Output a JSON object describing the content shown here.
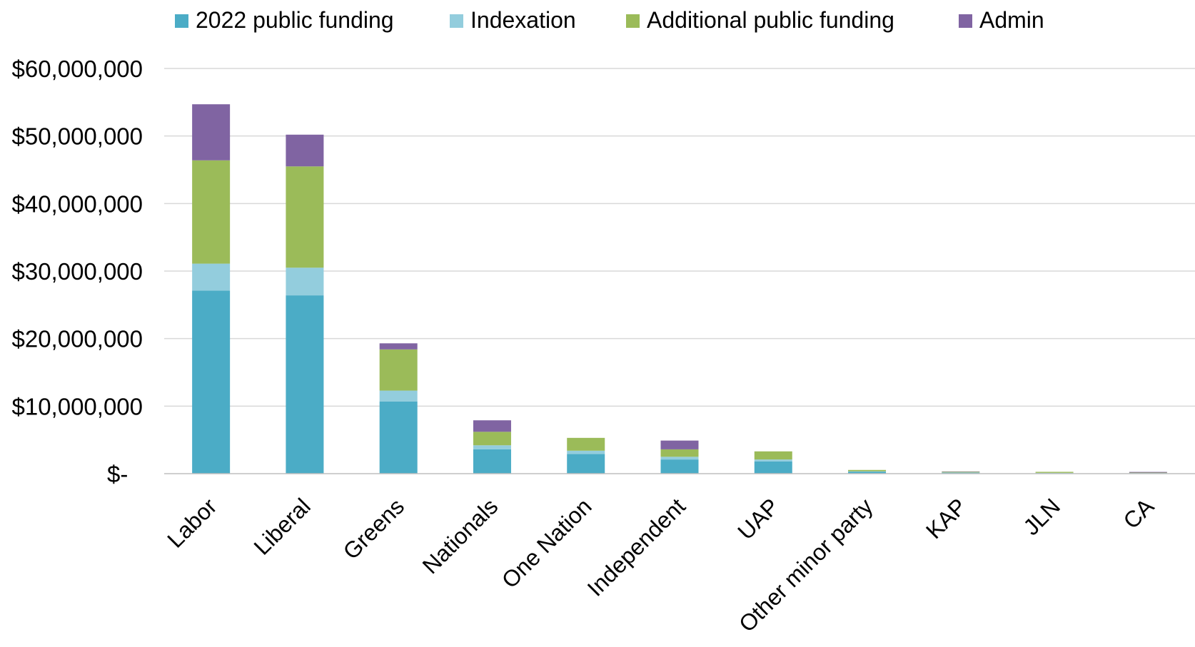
{
  "chart_data": {
    "type": "bar",
    "stacked": true,
    "title": "",
    "xlabel": "",
    "ylabel": "",
    "ylim": [
      0,
      60000000
    ],
    "yticks": [
      0,
      10000000,
      20000000,
      30000000,
      40000000,
      50000000,
      60000000
    ],
    "ytick_labels": [
      "$-",
      "$10,000,000",
      "$20,000,000",
      "$30,000,000",
      "$40,000,000",
      "$50,000,000",
      "$60,000,000"
    ],
    "grid": true,
    "legend_position": "top",
    "categories": [
      "Labor",
      "Liberal",
      "Greens",
      "Nationals",
      "One Nation",
      "Independent",
      "UAP",
      "Other minor party",
      "KAP",
      "JLN",
      "CA"
    ],
    "series": [
      {
        "name": "2022 public funding",
        "color": "#4bacc6",
        "values": [
          27100000,
          26400000,
          10700000,
          3600000,
          2900000,
          2100000,
          1800000,
          300000,
          150000,
          100000,
          80000
        ]
      },
      {
        "name": "Indexation",
        "color": "#93cddd",
        "values": [
          4000000,
          4100000,
          1600000,
          600000,
          500000,
          400000,
          300000,
          50000,
          30000,
          20000,
          15000
        ]
      },
      {
        "name": "Additional public funding",
        "color": "#9bbb59",
        "values": [
          15300000,
          15000000,
          6100000,
          2000000,
          1900000,
          1100000,
          1200000,
          200000,
          100000,
          150000,
          60000
        ]
      },
      {
        "name": "Admin",
        "color": "#8064a2",
        "values": [
          8300000,
          4700000,
          900000,
          1700000,
          0,
          1300000,
          0,
          0,
          50000,
          0,
          100000
        ]
      }
    ]
  }
}
